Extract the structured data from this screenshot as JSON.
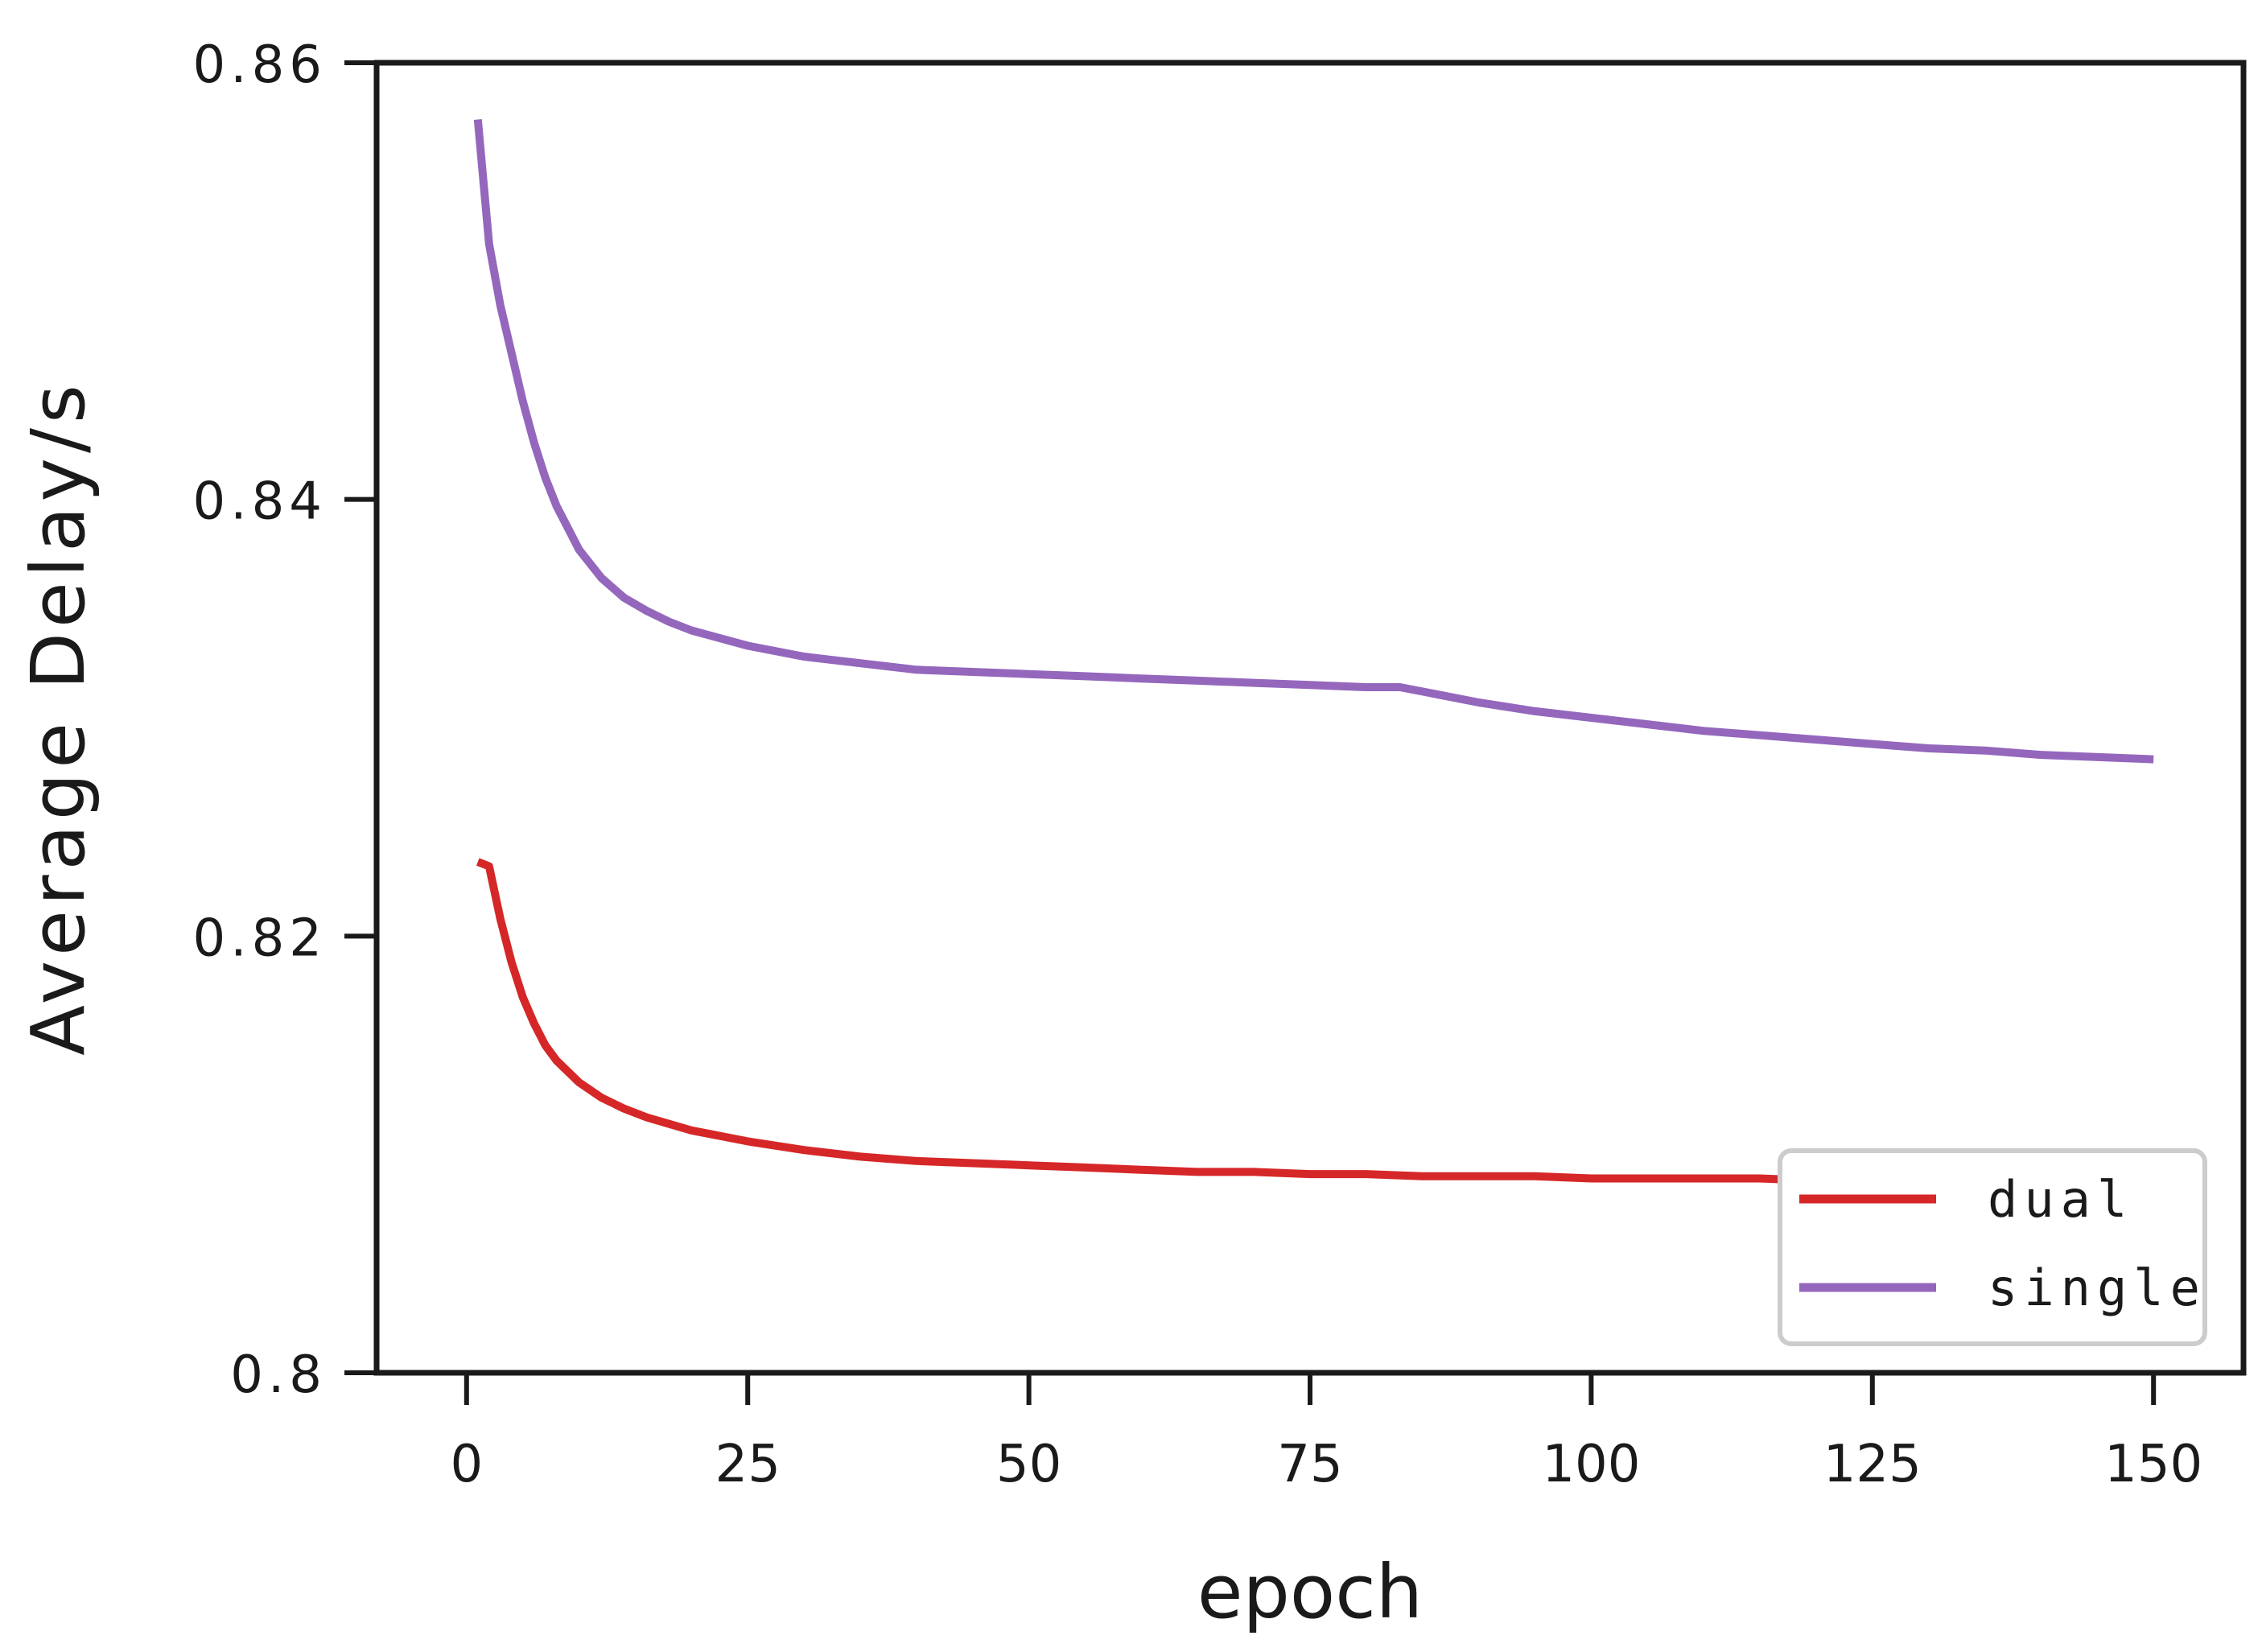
{
  "chart_data": {
    "type": "line",
    "title": "",
    "xlabel": "epoch",
    "ylabel": "Average Delay/s",
    "xlim": [
      -8,
      158
    ],
    "ylim": [
      0.8,
      0.86
    ],
    "xticks": [
      0,
      25,
      50,
      75,
      100,
      125,
      150
    ],
    "xtick_labels": [
      "0",
      "25",
      "50",
      "75",
      "100",
      "125",
      "150"
    ],
    "yticks": [
      0.8,
      0.82,
      0.84,
      0.86
    ],
    "ytick_labels": [
      "0.8",
      "0.82",
      "0.84",
      "0.86"
    ],
    "grid": false,
    "legend_position": "lower-right",
    "series": [
      {
        "name": "dual",
        "color": "#d62728",
        "x": [
          1,
          2,
          3,
          4,
          5,
          6,
          7,
          8,
          10,
          12,
          14,
          16,
          18,
          20,
          25,
          30,
          35,
          40,
          45,
          50,
          55,
          60,
          65,
          70,
          75,
          80,
          85,
          90,
          95,
          100,
          105,
          110,
          115,
          120,
          125,
          130,
          135,
          140,
          145,
          150
        ],
        "y": [
          0.8234,
          0.8232,
          0.8208,
          0.8188,
          0.8172,
          0.816,
          0.815,
          0.8143,
          0.8133,
          0.8126,
          0.8121,
          0.8117,
          0.8114,
          0.8111,
          0.8106,
          0.8102,
          0.8099,
          0.8097,
          0.8096,
          0.8095,
          0.8094,
          0.8093,
          0.8092,
          0.8092,
          0.8091,
          0.8091,
          0.809,
          0.809,
          0.809,
          0.8089,
          0.8089,
          0.8089,
          0.8089,
          0.8088,
          0.8088,
          0.8088,
          0.8088,
          0.8088,
          0.8088,
          0.8088
        ]
      },
      {
        "name": "single",
        "color": "#9467bd",
        "x": [
          1,
          2,
          3,
          4,
          5,
          6,
          7,
          8,
          10,
          12,
          14,
          16,
          18,
          20,
          25,
          30,
          35,
          40,
          45,
          50,
          55,
          60,
          65,
          70,
          75,
          80,
          83,
          85,
          90,
          95,
          100,
          105,
          110,
          115,
          120,
          125,
          130,
          135,
          140,
          150
        ],
        "y": [
          0.8574,
          0.8517,
          0.8489,
          0.8467,
          0.8445,
          0.8426,
          0.841,
          0.8397,
          0.8377,
          0.8364,
          0.8355,
          0.8349,
          0.8344,
          0.834,
          0.8333,
          0.8328,
          0.8325,
          0.8322,
          0.8321,
          0.832,
          0.8319,
          0.8318,
          0.8317,
          0.8316,
          0.8315,
          0.8314,
          0.8314,
          0.8312,
          0.8307,
          0.8303,
          0.83,
          0.8297,
          0.8294,
          0.8292,
          0.829,
          0.8288,
          0.8286,
          0.8285,
          0.8283,
          0.8281
        ]
      }
    ]
  }
}
